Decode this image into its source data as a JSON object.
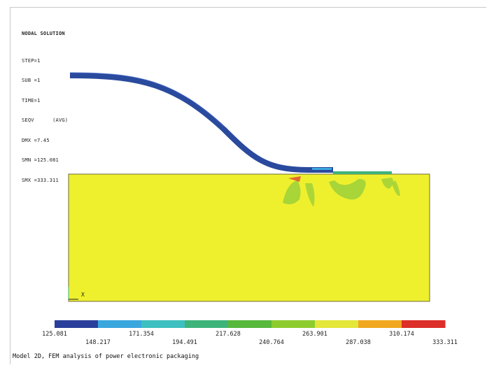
{
  "solution_info": {
    "title": "NODAL SOLUTION",
    "lines": [
      "STEP=1",
      "SUB =1",
      "TIME=1",
      "SEQV      (AVG)",
      "DMX =7.45",
      "SMN =125.081",
      "SMX =333.311"
    ]
  },
  "legend": {
    "values_top": [
      "125.081",
      "171.354",
      "217.628",
      "263.901",
      "310.174"
    ],
    "values_bottom": [
      "148.217",
      "194.491",
      "240.764",
      "287.038",
      "333.311"
    ],
    "colors": [
      "#2a3f9c",
      "#3aa6de",
      "#3fc0c0",
      "#3eb47a",
      "#58b83c",
      "#8ccc2e",
      "#e4e63a",
      "#f0a820",
      "#dc2f2a"
    ]
  },
  "caption": "Model 2D, FEM analysis of power electronic packaging",
  "colors": {
    "substrate": "#eef02e",
    "wire": "#2a4a9e",
    "stress_green": "#9bd03a"
  }
}
